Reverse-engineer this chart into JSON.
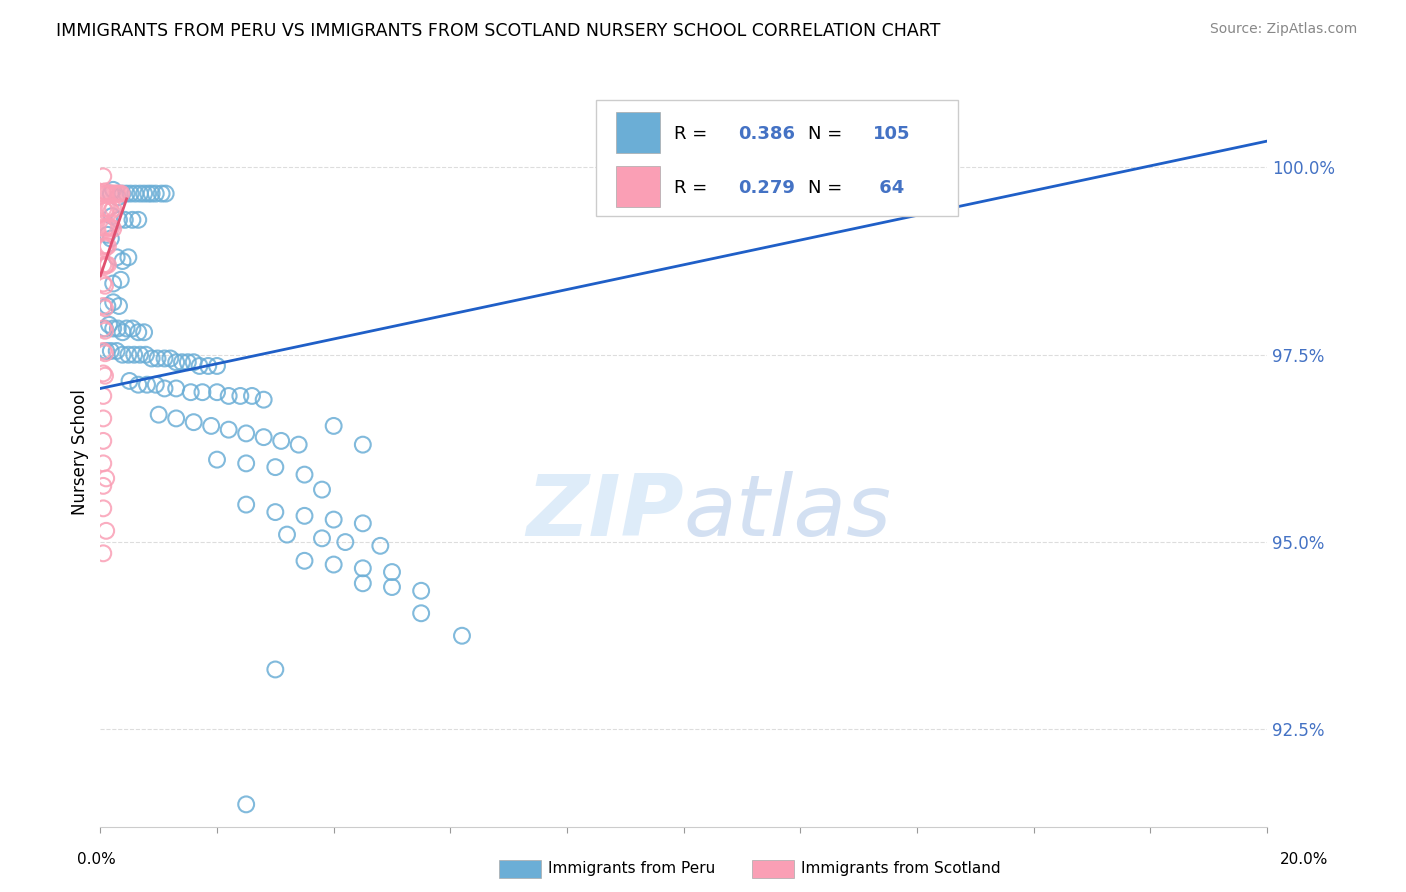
{
  "title": "IMMIGRANTS FROM PERU VS IMMIGRANTS FROM SCOTLAND NURSERY SCHOOL CORRELATION CHART",
  "source": "Source: ZipAtlas.com",
  "ylabel": "Nursery School",
  "ytick_values": [
    92.5,
    95.0,
    97.5,
    100.0
  ],
  "xlim": [
    0.0,
    20.0
  ],
  "ylim": [
    91.2,
    101.2
  ],
  "peru_color": "#6baed6",
  "scotland_color": "#fa9fb5",
  "tick_color": "#4472C4",
  "grid_color": "#dddddd",
  "background_color": "#ffffff",
  "peru_line": [
    [
      0.0,
      97.05
    ],
    [
      20.0,
      100.35
    ]
  ],
  "scotland_line": [
    [
      0.0,
      98.55
    ],
    [
      0.45,
      99.58
    ]
  ],
  "peru_scatter": [
    [
      0.18,
      99.65
    ],
    [
      0.22,
      99.7
    ],
    [
      0.3,
      99.6
    ],
    [
      0.38,
      99.65
    ],
    [
      0.45,
      99.65
    ],
    [
      0.52,
      99.65
    ],
    [
      0.6,
      99.65
    ],
    [
      0.68,
      99.65
    ],
    [
      0.75,
      99.65
    ],
    [
      0.82,
      99.65
    ],
    [
      0.88,
      99.65
    ],
    [
      0.95,
      99.65
    ],
    [
      1.05,
      99.65
    ],
    [
      1.12,
      99.65
    ],
    [
      0.2,
      99.35
    ],
    [
      0.32,
      99.3
    ],
    [
      0.42,
      99.3
    ],
    [
      0.55,
      99.3
    ],
    [
      0.65,
      99.3
    ],
    [
      0.12,
      99.1
    ],
    [
      0.18,
      99.05
    ],
    [
      0.28,
      98.8
    ],
    [
      0.38,
      98.75
    ],
    [
      0.48,
      98.8
    ],
    [
      0.22,
      98.45
    ],
    [
      0.35,
      98.5
    ],
    [
      0.12,
      98.15
    ],
    [
      0.22,
      98.2
    ],
    [
      0.32,
      98.15
    ],
    [
      0.08,
      97.85
    ],
    [
      0.15,
      97.9
    ],
    [
      0.22,
      97.85
    ],
    [
      0.3,
      97.85
    ],
    [
      0.38,
      97.8
    ],
    [
      0.45,
      97.85
    ],
    [
      0.55,
      97.85
    ],
    [
      0.65,
      97.8
    ],
    [
      0.75,
      97.8
    ],
    [
      0.1,
      97.55
    ],
    [
      0.18,
      97.55
    ],
    [
      0.28,
      97.55
    ],
    [
      0.38,
      97.5
    ],
    [
      0.48,
      97.5
    ],
    [
      0.58,
      97.5
    ],
    [
      0.68,
      97.5
    ],
    [
      0.78,
      97.5
    ],
    [
      0.88,
      97.45
    ],
    [
      0.98,
      97.45
    ],
    [
      1.1,
      97.45
    ],
    [
      1.2,
      97.45
    ],
    [
      1.3,
      97.4
    ],
    [
      1.4,
      97.4
    ],
    [
      1.5,
      97.4
    ],
    [
      1.6,
      97.4
    ],
    [
      1.7,
      97.35
    ],
    [
      1.85,
      97.35
    ],
    [
      2.0,
      97.35
    ],
    [
      0.5,
      97.15
    ],
    [
      0.65,
      97.1
    ],
    [
      0.8,
      97.1
    ],
    [
      0.95,
      97.1
    ],
    [
      1.1,
      97.05
    ],
    [
      1.3,
      97.05
    ],
    [
      1.55,
      97.0
    ],
    [
      1.75,
      97.0
    ],
    [
      2.0,
      97.0
    ],
    [
      2.2,
      96.95
    ],
    [
      2.4,
      96.95
    ],
    [
      2.6,
      96.95
    ],
    [
      2.8,
      96.9
    ],
    [
      1.0,
      96.7
    ],
    [
      1.3,
      96.65
    ],
    [
      1.6,
      96.6
    ],
    [
      1.9,
      96.55
    ],
    [
      2.2,
      96.5
    ],
    [
      2.5,
      96.45
    ],
    [
      2.8,
      96.4
    ],
    [
      3.1,
      96.35
    ],
    [
      3.4,
      96.3
    ],
    [
      2.0,
      96.1
    ],
    [
      2.5,
      96.05
    ],
    [
      3.0,
      96.0
    ],
    [
      3.5,
      95.9
    ],
    [
      4.0,
      96.55
    ],
    [
      4.5,
      96.3
    ],
    [
      3.8,
      95.7
    ],
    [
      2.5,
      95.5
    ],
    [
      3.0,
      95.4
    ],
    [
      3.5,
      95.35
    ],
    [
      4.0,
      95.3
    ],
    [
      4.5,
      95.25
    ],
    [
      3.2,
      95.1
    ],
    [
      3.8,
      95.05
    ],
    [
      4.2,
      95.0
    ],
    [
      4.8,
      94.95
    ],
    [
      3.5,
      94.75
    ],
    [
      4.0,
      94.7
    ],
    [
      4.5,
      94.65
    ],
    [
      5.0,
      94.6
    ],
    [
      4.5,
      94.45
    ],
    [
      5.0,
      94.4
    ],
    [
      5.5,
      94.35
    ],
    [
      5.5,
      94.05
    ],
    [
      6.2,
      93.75
    ],
    [
      3.0,
      93.3
    ],
    [
      2.5,
      91.5
    ]
  ],
  "scotland_scatter": [
    [
      0.05,
      99.65
    ],
    [
      0.08,
      99.68
    ],
    [
      0.1,
      99.65
    ],
    [
      0.13,
      99.65
    ],
    [
      0.16,
      99.65
    ],
    [
      0.19,
      99.65
    ],
    [
      0.22,
      99.65
    ],
    [
      0.25,
      99.65
    ],
    [
      0.28,
      99.65
    ],
    [
      0.3,
      99.65
    ],
    [
      0.33,
      99.65
    ],
    [
      0.36,
      99.65
    ],
    [
      0.05,
      99.45
    ],
    [
      0.08,
      99.42
    ],
    [
      0.1,
      99.45
    ],
    [
      0.13,
      99.45
    ],
    [
      0.16,
      99.45
    ],
    [
      0.19,
      99.42
    ],
    [
      0.22,
      99.45
    ],
    [
      0.05,
      99.2
    ],
    [
      0.08,
      99.18
    ],
    [
      0.1,
      99.2
    ],
    [
      0.13,
      99.2
    ],
    [
      0.16,
      99.2
    ],
    [
      0.19,
      99.2
    ],
    [
      0.22,
      99.18
    ],
    [
      0.05,
      98.95
    ],
    [
      0.08,
      98.92
    ],
    [
      0.1,
      98.95
    ],
    [
      0.13,
      98.95
    ],
    [
      0.05,
      98.7
    ],
    [
      0.08,
      98.68
    ],
    [
      0.1,
      98.7
    ],
    [
      0.13,
      98.7
    ],
    [
      0.05,
      98.45
    ],
    [
      0.08,
      98.42
    ],
    [
      0.05,
      98.15
    ],
    [
      0.08,
      98.12
    ],
    [
      0.05,
      97.85
    ],
    [
      0.08,
      97.82
    ],
    [
      0.05,
      97.55
    ],
    [
      0.08,
      97.52
    ],
    [
      0.05,
      97.25
    ],
    [
      0.08,
      97.22
    ],
    [
      0.05,
      96.95
    ],
    [
      0.05,
      96.65
    ],
    [
      0.05,
      96.35
    ],
    [
      0.05,
      96.05
    ],
    [
      0.05,
      95.75
    ],
    [
      0.05,
      95.45
    ],
    [
      0.1,
      95.15
    ],
    [
      0.05,
      94.85
    ],
    [
      0.1,
      95.85
    ],
    [
      0.05,
      99.88
    ]
  ],
  "legend_R_peru": "0.386",
  "legend_N_peru": "105",
  "legend_R_scot": "0.279",
  "legend_N_scot": " 64"
}
